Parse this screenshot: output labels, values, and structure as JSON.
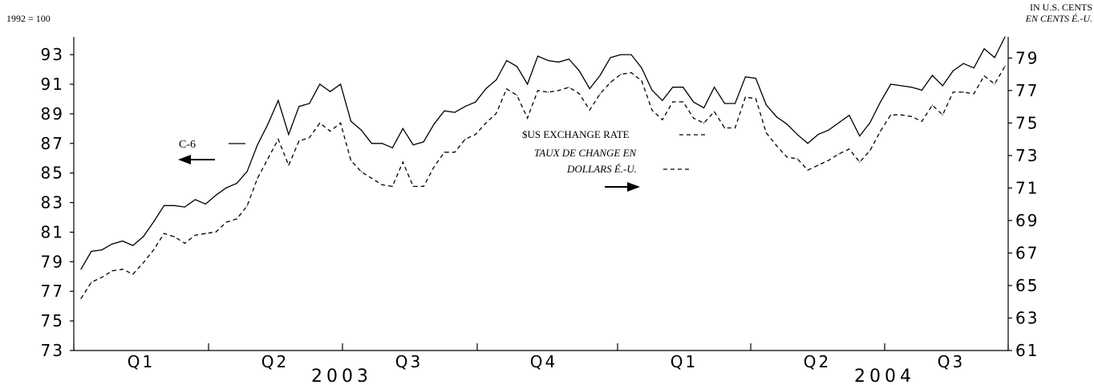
{
  "chart_data": {
    "type": "line",
    "left_axis": {
      "unit_label": "1992 = 100",
      "ticks": [
        73,
        75,
        77,
        79,
        81,
        83,
        85,
        87,
        89,
        91,
        93
      ],
      "ylim": [
        73,
        94.2
      ]
    },
    "right_axis": {
      "unit_label_en": "IN U.S. CENTS",
      "unit_label_fr": "EN CENTS É.-U.",
      "ticks": [
        61,
        63,
        65,
        67,
        69,
        71,
        73,
        75,
        77,
        79
      ],
      "ylim": [
        61,
        80.3
      ]
    },
    "quarters": [
      "Q1",
      "Q2",
      "Q3",
      "Q4",
      "Q1",
      "Q2",
      "Q3"
    ],
    "years": [
      "2003",
      "2004"
    ],
    "series": [
      {
        "name": "C-6",
        "axis": "left",
        "style": "solid",
        "values": [
          78.5,
          79.7,
          79.8,
          80.2,
          80.4,
          80.1,
          80.7,
          81.7,
          82.8,
          82.8,
          82.7,
          83.2,
          82.9,
          83.5,
          84.0,
          84.3,
          85.1,
          86.9,
          88.3,
          89.9,
          87.6,
          89.5,
          89.7,
          91.0,
          90.5,
          91.0,
          88.5,
          87.9,
          87.0,
          87.0,
          86.7,
          88.0,
          86.9,
          87.1,
          88.3,
          89.2,
          89.1,
          89.5,
          89.8,
          90.7,
          91.3,
          92.6,
          92.2,
          91.0,
          92.9,
          92.6,
          92.5,
          92.7,
          91.9,
          90.7,
          91.6,
          92.8,
          93.0,
          93.0,
          92.1,
          90.6,
          89.9,
          90.8,
          90.8,
          89.8,
          89.4,
          90.8,
          89.7,
          89.7,
          91.5,
          91.4,
          89.6,
          88.8,
          88.3,
          87.6,
          87.0,
          87.6,
          87.9,
          88.4,
          88.9,
          87.5,
          88.4,
          89.8,
          91.0,
          90.9,
          90.8,
          90.6,
          91.6,
          90.9,
          91.9,
          92.4,
          92.1,
          93.4,
          92.8,
          94.2
        ]
      },
      {
        "name": "$US EXCHANGE RATE",
        "name_fr_line1": "TAUX DE CHANGE EN",
        "name_fr_line2": "DOLLARS É.-U.",
        "axis": "right",
        "style": "dashed",
        "values": [
          64.2,
          65.2,
          65.5,
          65.9,
          66.0,
          65.7,
          66.4,
          67.2,
          68.2,
          68.0,
          67.6,
          68.1,
          68.2,
          68.3,
          68.9,
          69.1,
          69.9,
          71.6,
          72.8,
          74.0,
          72.4,
          73.9,
          74.1,
          75.0,
          74.5,
          75.0,
          72.7,
          72.0,
          71.6,
          71.2,
          71.1,
          72.6,
          71.1,
          71.1,
          72.3,
          73.2,
          73.2,
          74.0,
          74.3,
          75.0,
          75.6,
          77.1,
          76.7,
          75.3,
          77.0,
          76.9,
          77.0,
          77.2,
          76.8,
          75.8,
          76.8,
          77.5,
          78.0,
          78.1,
          77.6,
          75.8,
          75.2,
          76.3,
          76.3,
          75.3,
          75.0,
          75.7,
          74.7,
          74.7,
          76.6,
          76.5,
          74.4,
          73.6,
          72.9,
          72.8,
          72.1,
          72.4,
          72.7,
          73.1,
          73.4,
          72.6,
          73.3,
          74.5,
          75.5,
          75.5,
          75.4,
          75.1,
          76.1,
          75.5,
          76.9,
          76.9,
          76.8,
          77.9,
          77.4,
          78.5
        ]
      }
    ],
    "annotations": [
      {
        "text": "C-6",
        "points_to": "left axis"
      },
      {
        "text": "$US EXCHANGE RATE",
        "points_to": "right axis"
      }
    ],
    "grid": false,
    "legend": "inline"
  }
}
